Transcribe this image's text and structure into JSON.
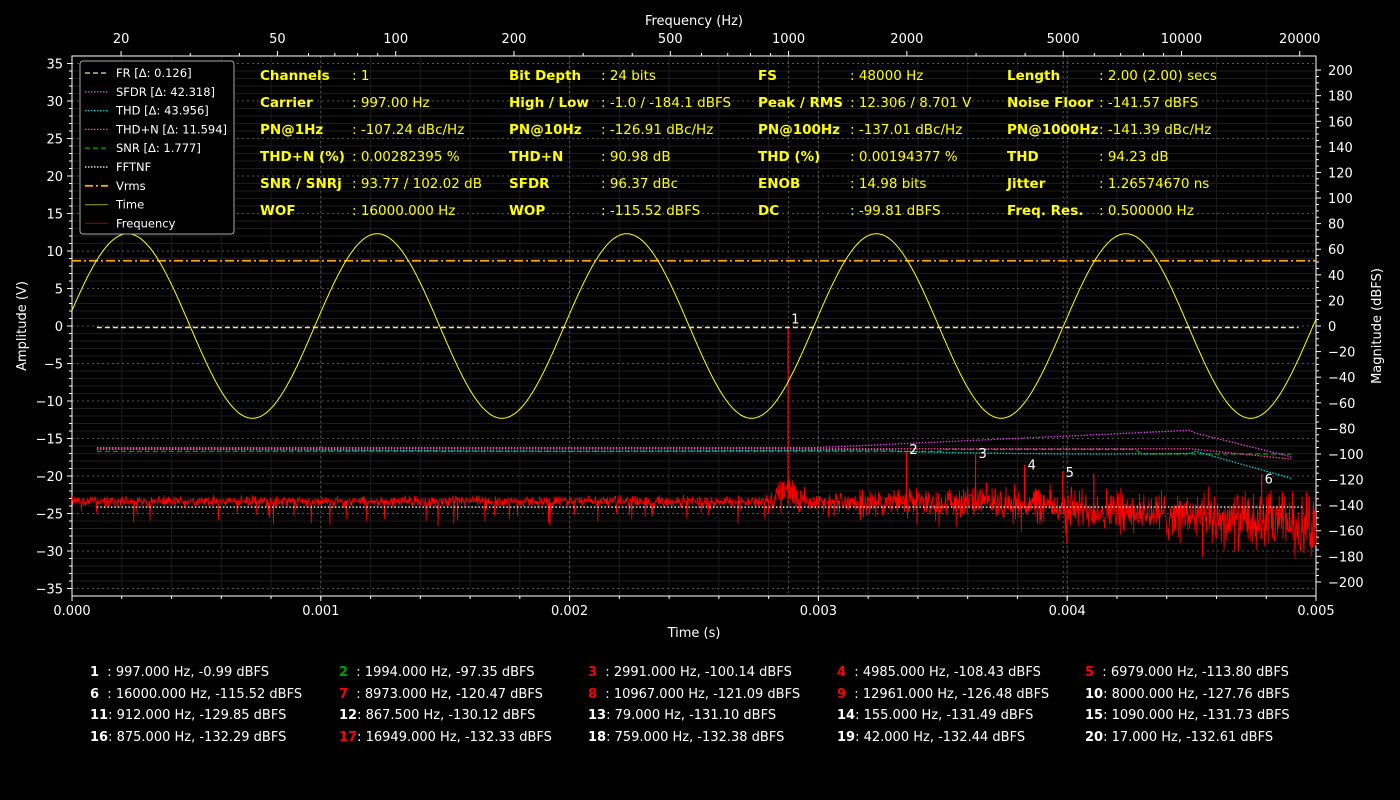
{
  "chart_data": {
    "type": "line",
    "xlabel": "Time (s)",
    "ylabel_left": "Amplitude (V)",
    "ylabel_right": "Magnitude (dBFS)",
    "top_xlabel": "Frequency (Hz)",
    "xlim": [
      0,
      0.005
    ],
    "ylim_left": [
      -36,
      36
    ],
    "ylim_right": [
      -211,
      211
    ],
    "freq_lim": [
      15,
      22000
    ],
    "x_ticks": [
      "0.000",
      "0.001",
      "0.002",
      "0.003",
      "0.004",
      "0.005"
    ],
    "y_left_ticks": [
      -35,
      -30,
      -25,
      -20,
      -15,
      -10,
      -5,
      0,
      5,
      10,
      15,
      20,
      25,
      30,
      35
    ],
    "y_right_ticks": [
      -200,
      -180,
      -160,
      -140,
      -120,
      -100,
      -80,
      -60,
      -40,
      -20,
      0,
      20,
      40,
      60,
      80,
      100,
      120,
      140,
      160,
      180,
      200
    ],
    "freq_ticks": [
      20,
      50,
      100,
      200,
      500,
      1000,
      2000,
      5000,
      10000,
      20000
    ],
    "grid": true,
    "legend_position": "top-left",
    "legend": [
      {
        "label": "FR [Δ: 0.126]",
        "color": "#f5deb3",
        "style": "dashed"
      },
      {
        "label": "SFDR [Δ: 42.318]",
        "color": "#e040e0",
        "style": "dotted"
      },
      {
        "label": "THD [Δ: 43.956]",
        "color": "#00d0d0",
        "style": "dotted"
      },
      {
        "label": "THD+N [Δ: 11.594]",
        "color": "#ff40a0",
        "style": "dotted"
      },
      {
        "label": "SNR [Δ: 1.777]",
        "color": "#00a000",
        "style": "dashed"
      },
      {
        "label": "FFTNF",
        "color": "#ffffff",
        "style": "dotted"
      },
      {
        "label": "Vrms",
        "color": "#ffa500",
        "style": "dashdot"
      },
      {
        "label": "Time",
        "color": "#808000",
        "style": "solid"
      },
      {
        "label": "Frequency",
        "color": "#800000",
        "style": "solid"
      }
    ],
    "signal": {
      "frequency_hz": 997,
      "peak_v": 12.306,
      "rms_v": 8.701
    },
    "fr_level_v": -0.2,
    "noise_floor_dbfs": -141.57,
    "spectrum_base_dbfs": -140,
    "marked_peaks_hz": [
      997,
      1994,
      2991,
      3988,
      4985,
      5982,
      16000
    ],
    "marker_labels": [
      "1",
      "2",
      "3",
      "4",
      "5",
      "6"
    ],
    "stats": [
      [
        {
          "k": "Channels",
          "v": ": 1"
        },
        {
          "k": "Bit Depth",
          "v": ": 24 bits"
        },
        {
          "k": "FS",
          "v": ": 48000 Hz"
        },
        {
          "k": "Length",
          "v": ": 2.00 (2.00) secs"
        }
      ],
      [
        {
          "k": "Carrier",
          "v": ": 997.00 Hz"
        },
        {
          "k": "High / Low",
          "v": ": -1.0 / -184.1 dBFS"
        },
        {
          "k": "Peak / RMS",
          "v": ": 12.306 / 8.701 V"
        },
        {
          "k": "Noise Floor",
          "v": ": -141.57 dBFS"
        }
      ],
      [
        {
          "k": "PN@1Hz",
          "v": ": -107.24 dBc/Hz"
        },
        {
          "k": "PN@10Hz",
          "v": ": -126.91 dBc/Hz"
        },
        {
          "k": "PN@100Hz",
          "v": ": -137.01 dBc/Hz"
        },
        {
          "k": "PN@1000Hz",
          "v": ": -141.39 dBc/Hz"
        }
      ],
      [
        {
          "k": "THD+N (%)",
          "v": ": 0.00282395 %"
        },
        {
          "k": "THD+N",
          "v": ": 90.98 dB"
        },
        {
          "k": "THD (%)",
          "v": ": 0.00194377 %"
        },
        {
          "k": "THD",
          "v": ": 94.23 dB"
        }
      ],
      [
        {
          "k": "SNR / SNRj",
          "v": ": 93.77 / 102.02 dB"
        },
        {
          "k": "SFDR",
          "v": ": 96.37 dBc"
        },
        {
          "k": "ENOB",
          "v": ": 14.98 bits"
        },
        {
          "k": "Jitter",
          "v": ": 1.26574670 ns"
        }
      ],
      [
        {
          "k": "WOF",
          "v": ": 16000.000 Hz"
        },
        {
          "k": "WOP",
          "v": ": -115.52 dBFS"
        },
        {
          "k": "DC",
          "v": ": -99.81 dBFS"
        },
        {
          "k": "Freq. Res.",
          "v": ": 0.500000 Hz"
        }
      ]
    ],
    "peaks": [
      {
        "n": "1",
        "text": ": 997.000 Hz, -0.99 dBFS",
        "color": "#ffffff"
      },
      {
        "n": "2",
        "text": ": 1994.000 Hz, -97.35 dBFS",
        "color": "#00a000"
      },
      {
        "n": "3",
        "text": ": 2991.000 Hz, -100.14 dBFS",
        "color": "#ff0000"
      },
      {
        "n": "4",
        "text": ": 4985.000 Hz, -108.43 dBFS",
        "color": "#ff0000"
      },
      {
        "n": "5",
        "text": ": 6979.000 Hz, -113.80 dBFS",
        "color": "#ff0000"
      },
      {
        "n": "6",
        "text": ": 16000.000 Hz, -115.52 dBFS",
        "color": "#ffffff"
      },
      {
        "n": "7",
        "text": ": 8973.000 Hz, -120.47 dBFS",
        "color": "#ff0000"
      },
      {
        "n": "8",
        "text": ": 10967.000 Hz, -121.09 dBFS",
        "color": "#ff0000"
      },
      {
        "n": "9",
        "text": ": 12961.000 Hz, -126.48 dBFS",
        "color": "#ff0000"
      },
      {
        "n": "10",
        "text": ": 8000.000 Hz, -127.76 dBFS",
        "color": "#ffffff"
      },
      {
        "n": "11",
        "text": ": 912.000 Hz, -129.85 dBFS",
        "color": "#ffffff"
      },
      {
        "n": "12",
        "text": ": 867.500 Hz, -130.12 dBFS",
        "color": "#ffffff"
      },
      {
        "n": "13",
        "text": ": 79.000 Hz, -131.10 dBFS",
        "color": "#ffffff"
      },
      {
        "n": "14",
        "text": ": 155.000 Hz, -131.49 dBFS",
        "color": "#ffffff"
      },
      {
        "n": "15",
        "text": ": 1090.000 Hz, -131.73 dBFS",
        "color": "#ffffff"
      },
      {
        "n": "16",
        "text": ": 875.000 Hz, -132.29 dBFS",
        "color": "#ffffff"
      },
      {
        "n": "17",
        "text": ": 16949.000 Hz, -132.33 dBFS",
        "color": "#ff0000"
      },
      {
        "n": "18",
        "text": ": 759.000 Hz, -132.38 dBFS",
        "color": "#ffffff"
      },
      {
        "n": "19",
        "text": ": 42.000 Hz, -132.44 dBFS",
        "color": "#ffffff"
      },
      {
        "n": "20",
        "text": ": 17.000 Hz, -132.61 dBFS",
        "color": "#ffffff"
      }
    ]
  }
}
